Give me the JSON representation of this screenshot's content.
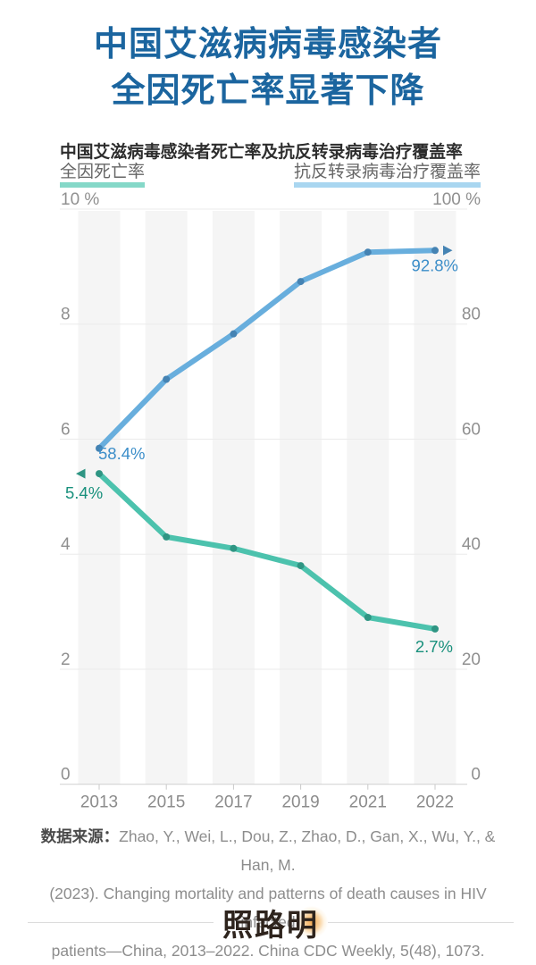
{
  "title": {
    "line1": "中国艾滋病病毒感染者",
    "line2": "全因死亡率显著下降"
  },
  "subtitle": "中国艾滋病毒感染者死亡率及抗反转录病毒治疗覆盖率",
  "legend": {
    "left": {
      "label": "全因死亡率",
      "underline_color": "#85d8c8"
    },
    "right": {
      "label": "抗反转录病毒治疗覆盖率",
      "underline_color": "#a9d6f0"
    }
  },
  "chart_data": {
    "type": "line",
    "categories": [
      "2013",
      "2015",
      "2017",
      "2019",
      "2021",
      "2022"
    ],
    "series": [
      {
        "name": "全因死亡率",
        "axis": "left",
        "values": [
          5.4,
          4.3,
          4.1,
          3.8,
          2.9,
          2.7
        ],
        "color": "#4cc2ad",
        "dot_color": "#2f9583",
        "label_color": "#18907c",
        "start_label": "5.4%",
        "end_label": "2.7%",
        "arrow": "left"
      },
      {
        "name": "抗反转录病毒治疗覆盖率",
        "axis": "right",
        "values": [
          58.4,
          70.4,
          78.3,
          87.4,
          92.5,
          92.8
        ],
        "color": "#68aedd",
        "dot_color": "#4583b3",
        "label_color": "#3c8ec9",
        "start_label": "58.4%",
        "end_label": "92.8%",
        "arrow": "right"
      }
    ],
    "left_axis": {
      "min": 0,
      "max": 10,
      "ticks": [
        "0",
        "2",
        "4",
        "6",
        "8",
        "10 %"
      ]
    },
    "right_axis": {
      "min": 0,
      "max": 100,
      "ticks": [
        "0",
        "20",
        "40",
        "60",
        "80",
        "100 %"
      ]
    },
    "grid": true,
    "band_color": "#f5f5f5",
    "grid_color": "#ebebeb",
    "axis_line_color": "#d0d0d0",
    "tick_mark_color": "#c9c9c9"
  },
  "source": {
    "label": "数据来源：",
    "line1": "Zhao, Y., Wei, L., Dou, Z., Zhao, D., Gan, X., Wu, Y., & Han, M.",
    "line2": "(2023). Changing mortality and patterns of death causes in HIV infected",
    "line3": "patients—China, 2013–2022. China CDC Weekly, 5(48), 1073."
  },
  "footer": {
    "logo": "照路明"
  },
  "colors": {
    "title": "#1b659f"
  }
}
